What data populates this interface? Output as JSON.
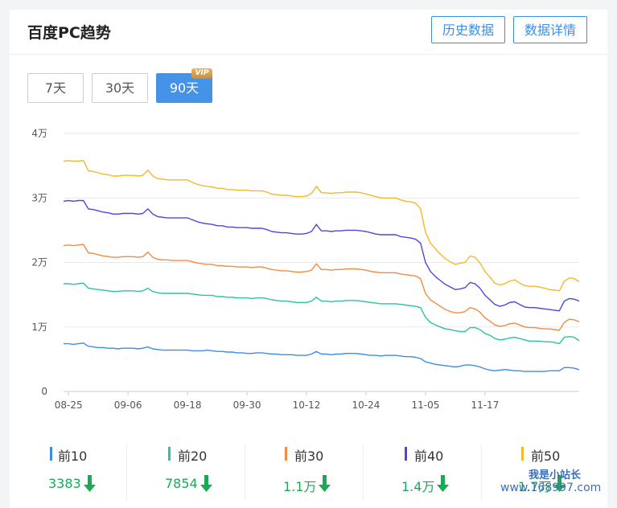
{
  "header": {
    "title": "百度PC趋势",
    "history_button": "历史数据",
    "details_button": "数据详情"
  },
  "range": {
    "options": [
      "7天",
      "30天",
      "90天"
    ],
    "selected": "90天",
    "vip_badge": "VIP"
  },
  "chart_data": {
    "type": "line",
    "y_ticks": [
      "0",
      "1万",
      "2万",
      "3万",
      "4万"
    ],
    "x_ticks": [
      "08-25",
      "09-06",
      "09-18",
      "09-30",
      "10-12",
      "10-24",
      "11-05",
      "11-17"
    ],
    "ylim": [
      0,
      40000
    ],
    "grid": true,
    "x_labels_index": [
      1,
      13,
      25,
      37,
      49,
      61,
      73,
      85
    ],
    "series": [
      {
        "name": "前10",
        "color": "#3a8ee6",
        "values": [
          7400,
          7400,
          7300,
          7400,
          7500,
          7000,
          6900,
          6800,
          6800,
          6700,
          6700,
          6600,
          6700,
          6700,
          6700,
          6600,
          6700,
          6900,
          6600,
          6500,
          6400,
          6400,
          6400,
          6400,
          6400,
          6400,
          6300,
          6300,
          6300,
          6400,
          6300,
          6200,
          6200,
          6100,
          6100,
          6000,
          6000,
          5900,
          5900,
          6000,
          6000,
          5900,
          5800,
          5800,
          5700,
          5700,
          5700,
          5600,
          5600,
          5600,
          5800,
          6200,
          5800,
          5800,
          5700,
          5800,
          5800,
          5900,
          5900,
          5900,
          5800,
          5700,
          5600,
          5600,
          5500,
          5600,
          5600,
          5600,
          5500,
          5400,
          5400,
          5300,
          5100,
          4600,
          4400,
          4200,
          4100,
          4000,
          3900,
          3800,
          3900,
          4100,
          4100,
          4000,
          3800,
          3500,
          3300,
          3200,
          3300,
          3400,
          3300,
          3200,
          3200,
          3100,
          3100,
          3100,
          3100,
          3100,
          3200,
          3200,
          3200,
          3700,
          3700,
          3600,
          3383
        ]
      },
      {
        "name": "前20",
        "color": "#2bc4a0",
        "values": [
          16700,
          16700,
          16600,
          16700,
          16800,
          16000,
          15900,
          15800,
          15700,
          15600,
          15500,
          15500,
          15600,
          15600,
          15600,
          15500,
          15600,
          16000,
          15500,
          15300,
          15200,
          15200,
          15200,
          15200,
          15200,
          15200,
          15100,
          15000,
          14900,
          14900,
          14900,
          14700,
          14700,
          14600,
          14600,
          14500,
          14500,
          14500,
          14400,
          14500,
          14500,
          14400,
          14200,
          14100,
          14000,
          14000,
          13900,
          13800,
          13800,
          13800,
          14000,
          14600,
          14000,
          14000,
          13900,
          14000,
          14000,
          14100,
          14100,
          14100,
          14000,
          13900,
          13800,
          13700,
          13600,
          13600,
          13600,
          13600,
          13500,
          13400,
          13300,
          13200,
          13000,
          11500,
          10700,
          10300,
          10000,
          9700,
          9600,
          9400,
          9300,
          9300,
          9900,
          9900,
          9600,
          9000,
          8700,
          8200,
          8000,
          8100,
          8300,
          8400,
          8200,
          8000,
          7800,
          7800,
          7800,
          7700,
          7700,
          7600,
          7400,
          8400,
          8500,
          8400,
          7854
        ]
      },
      {
        "name": "前30",
        "color": "#f08c44",
        "values": [
          22600,
          22700,
          22600,
          22700,
          22800,
          21500,
          21400,
          21200,
          21000,
          20900,
          20800,
          20800,
          20900,
          20900,
          20900,
          20800,
          20900,
          21600,
          20800,
          20500,
          20400,
          20400,
          20300,
          20300,
          20300,
          20300,
          20100,
          19900,
          19800,
          19700,
          19700,
          19500,
          19500,
          19400,
          19400,
          19300,
          19300,
          19300,
          19200,
          19300,
          19300,
          19100,
          18900,
          18800,
          18700,
          18700,
          18600,
          18500,
          18500,
          18600,
          18800,
          19800,
          18900,
          18900,
          18800,
          18900,
          18900,
          19000,
          19000,
          19000,
          18900,
          18800,
          18600,
          18500,
          18400,
          18400,
          18400,
          18400,
          18200,
          18100,
          18000,
          17900,
          17500,
          15200,
          14200,
          13700,
          13200,
          12700,
          12400,
          12200,
          12200,
          12400,
          13000,
          12800,
          12300,
          11400,
          10900,
          10300,
          10100,
          10200,
          10500,
          10600,
          10300,
          10000,
          9900,
          9900,
          9800,
          9700,
          9700,
          9600,
          9500,
          10700,
          11200,
          11100,
          10800
        ]
      },
      {
        "name": "前40",
        "color": "#4b47dd",
        "values": [
          29500,
          29600,
          29500,
          29600,
          29600,
          28300,
          28200,
          28000,
          27800,
          27700,
          27500,
          27500,
          27600,
          27600,
          27600,
          27500,
          27600,
          28300,
          27500,
          27100,
          27000,
          26900,
          26900,
          26900,
          26900,
          26900,
          26600,
          26300,
          26100,
          26000,
          25900,
          25700,
          25700,
          25500,
          25500,
          25400,
          25400,
          25400,
          25300,
          25300,
          25300,
          25100,
          24800,
          24700,
          24600,
          24600,
          24500,
          24400,
          24400,
          24500,
          24800,
          25900,
          24900,
          24900,
          24800,
          24900,
          24900,
          25000,
          25000,
          25000,
          24900,
          24800,
          24600,
          24400,
          24300,
          24300,
          24300,
          24300,
          24000,
          23900,
          23800,
          23600,
          23000,
          20000,
          18600,
          17800,
          17200,
          16600,
          16200,
          15800,
          15900,
          16100,
          16900,
          16700,
          16000,
          14900,
          14200,
          13500,
          13200,
          13400,
          13800,
          13900,
          13500,
          13100,
          13000,
          13000,
          12900,
          12800,
          12700,
          12600,
          12500,
          14000,
          14400,
          14300,
          14000
        ]
      },
      {
        "name": "前50",
        "color": "#f3b92a",
        "values": [
          35700,
          35800,
          35700,
          35700,
          35800,
          34200,
          34100,
          33900,
          33700,
          33600,
          33400,
          33400,
          33500,
          33500,
          33500,
          33400,
          33500,
          34300,
          33400,
          33000,
          32900,
          32800,
          32800,
          32800,
          32800,
          32800,
          32400,
          32100,
          31900,
          31800,
          31700,
          31500,
          31500,
          31300,
          31300,
          31200,
          31200,
          31200,
          31100,
          31100,
          31100,
          30900,
          30600,
          30500,
          30400,
          30400,
          30300,
          30200,
          30200,
          30300,
          30700,
          31800,
          30800,
          30800,
          30700,
          30800,
          30800,
          30900,
          30900,
          30900,
          30800,
          30600,
          30400,
          30200,
          30000,
          30000,
          30000,
          30000,
          29700,
          29500,
          29400,
          29200,
          28300,
          24700,
          23000,
          22100,
          21300,
          20600,
          20100,
          19700,
          19900,
          20000,
          21000,
          20800,
          19900,
          18600,
          17700,
          16800,
          16500,
          16700,
          17100,
          17300,
          16800,
          16400,
          16300,
          16300,
          16200,
          16000,
          15800,
          15700,
          15600,
          17100,
          17600,
          17500,
          17000
        ]
      }
    ]
  },
  "stats": [
    {
      "label": "前10",
      "value": "3383",
      "color": "#3a8ee6",
      "trend": "down"
    },
    {
      "label": "前20",
      "value": "7854",
      "color": "#2bc4a0",
      "trend": "down"
    },
    {
      "label": "前30",
      "value": "1.1万",
      "color": "#f08c44",
      "trend": "down"
    },
    {
      "label": "前40",
      "value": "1.4万",
      "color": "#4b47dd",
      "trend": "down"
    },
    {
      "label": "前50",
      "value": "1.7万",
      "color": "#f3b92a",
      "trend": "down"
    }
  ],
  "watermark": {
    "text": "我是小站长",
    "url": "www.168997.com"
  }
}
